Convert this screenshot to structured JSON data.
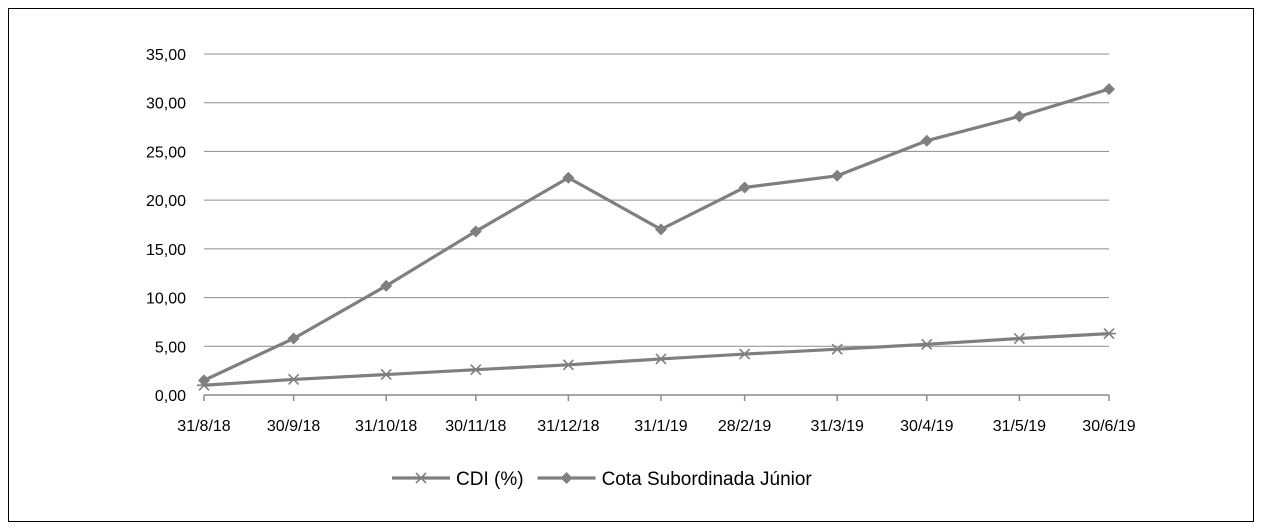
{
  "chart_data": {
    "type": "line",
    "categories": [
      "31/8/18",
      "30/9/18",
      "31/10/18",
      "30/11/18",
      "31/12/18",
      "31/1/19",
      "28/2/19",
      "31/3/19",
      "30/4/19",
      "31/5/19",
      "30/6/19"
    ],
    "day_offsets": [
      0,
      30,
      61,
      91,
      122,
      153,
      181,
      212,
      242,
      273,
      303
    ],
    "ylim": [
      0,
      35
    ],
    "y_ticks": [
      0,
      5,
      10,
      15,
      20,
      25,
      30,
      35
    ],
    "y_tick_labels": [
      "0,00",
      "5,00",
      "10,00",
      "15,00",
      "20,00",
      "25,00",
      "30,00",
      "35,00"
    ],
    "grid": true,
    "legend_position": "bottom",
    "series": [
      {
        "name": "CDI (%)",
        "marker": "asterisk",
        "color": "#7f7f7f",
        "values": [
          1.0,
          1.6,
          2.1,
          2.6,
          3.1,
          3.7,
          4.2,
          4.7,
          5.2,
          5.8,
          6.3
        ]
      },
      {
        "name": "Cota Subordinada Júnior",
        "marker": "diamond",
        "color": "#7f7f7f",
        "values": [
          1.5,
          5.8,
          11.2,
          16.8,
          22.3,
          17.0,
          21.3,
          22.5,
          26.1,
          28.6,
          31.4
        ]
      }
    ]
  }
}
